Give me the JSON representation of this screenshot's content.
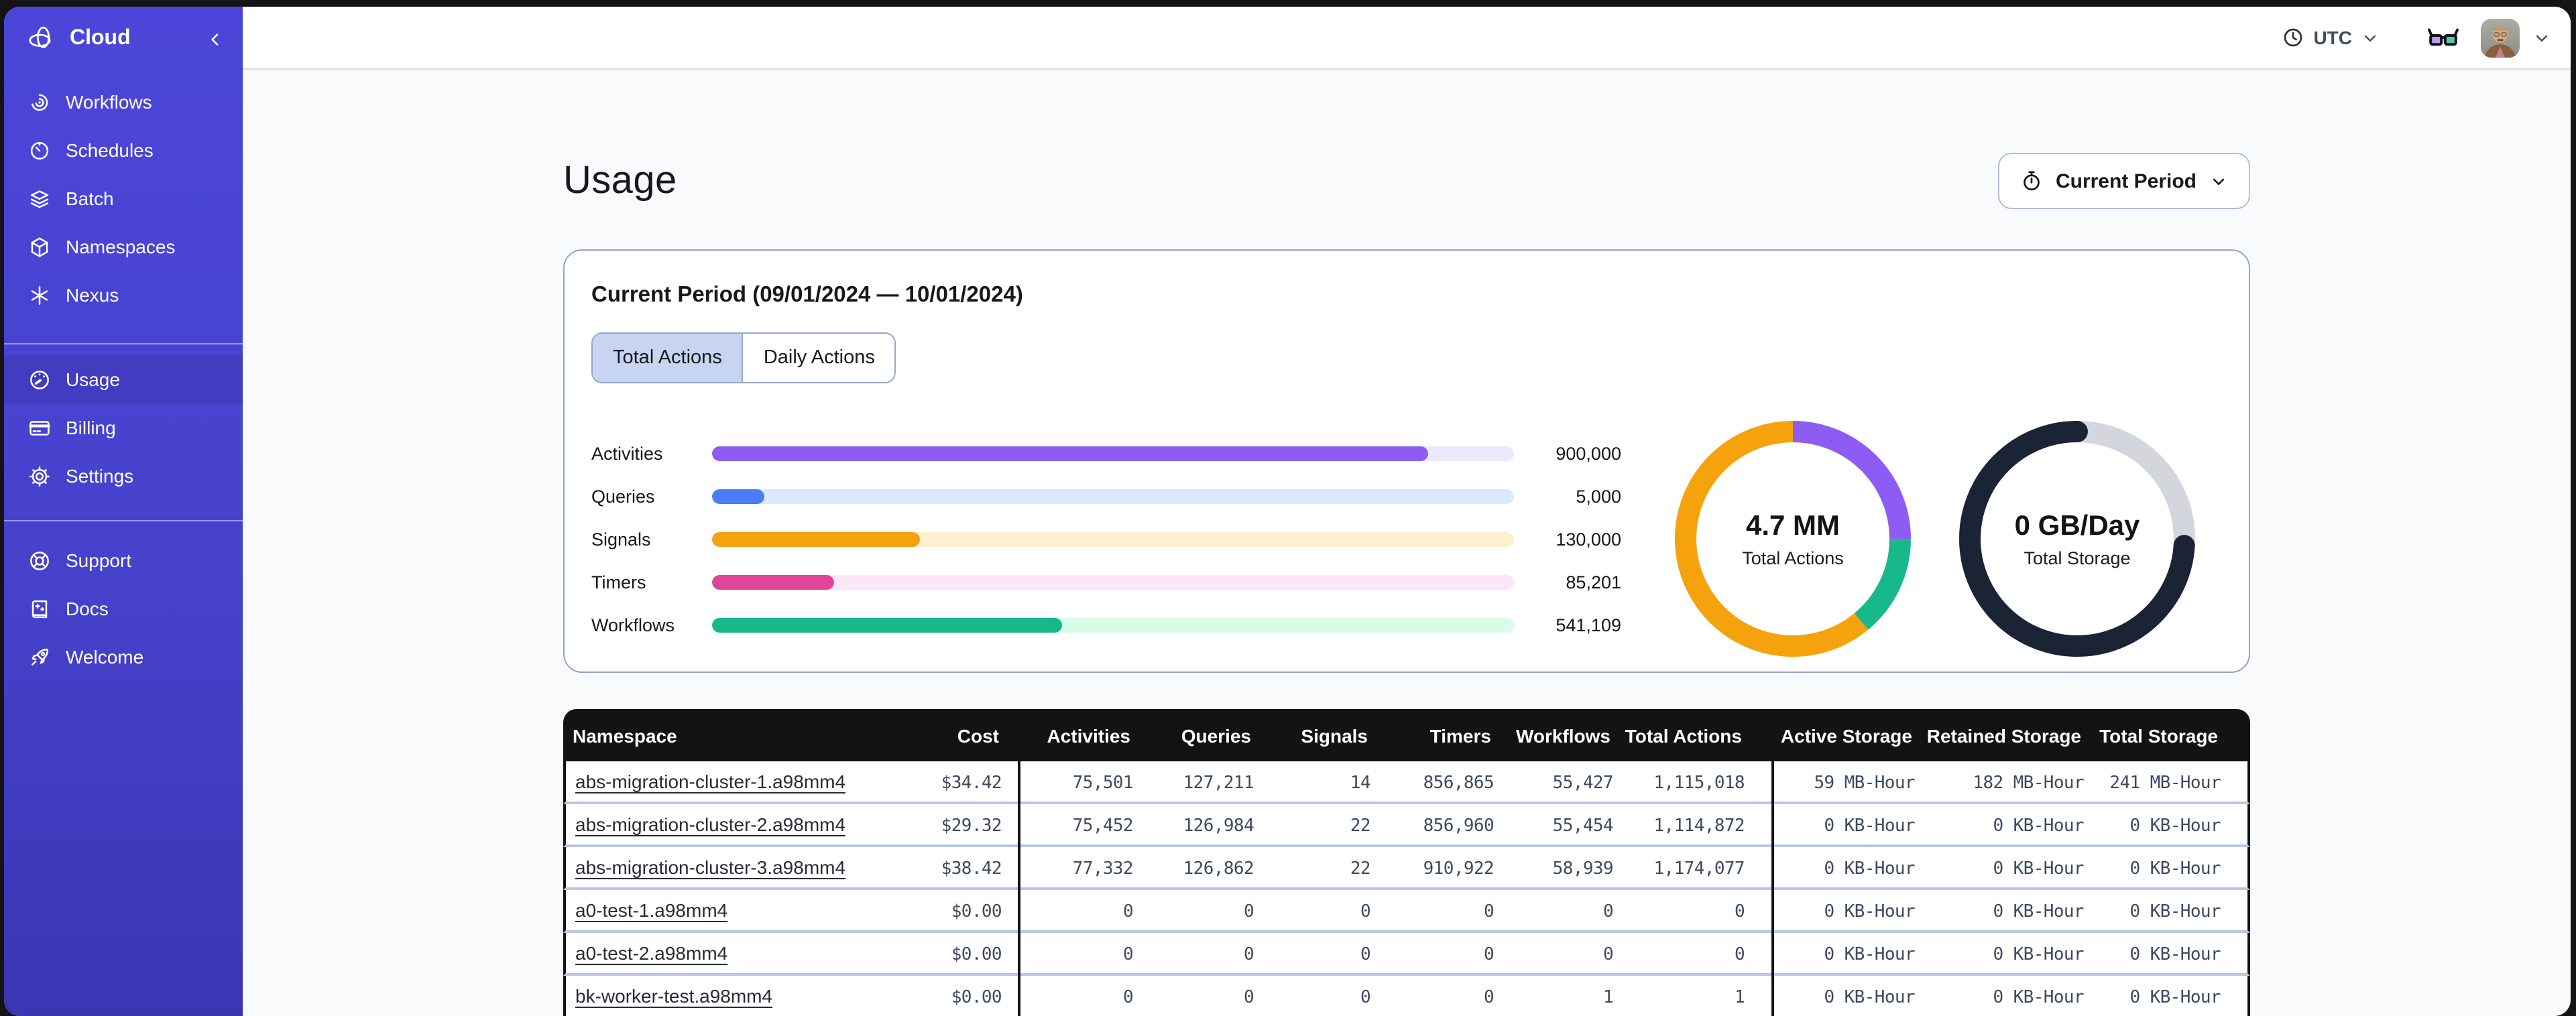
{
  "sidebar": {
    "brand": {
      "label": "Cloud",
      "icon": "temporal-logo"
    },
    "sections": [
      {
        "items": [
          {
            "id": "workflows",
            "label": "Workflows",
            "icon": "workflows"
          },
          {
            "id": "schedules",
            "label": "Schedules",
            "icon": "schedules"
          },
          {
            "id": "batch",
            "label": "Batch",
            "icon": "batch"
          },
          {
            "id": "namespaces",
            "label": "Namespaces",
            "icon": "namespaces"
          },
          {
            "id": "nexus",
            "label": "Nexus",
            "icon": "nexus"
          }
        ]
      },
      {
        "items": [
          {
            "id": "usage",
            "label": "Usage",
            "icon": "usage",
            "active": true
          },
          {
            "id": "billing",
            "label": "Billing",
            "icon": "billing"
          },
          {
            "id": "settings",
            "label": "Settings",
            "icon": "settings"
          }
        ]
      },
      {
        "items": [
          {
            "id": "support",
            "label": "Support",
            "icon": "support"
          },
          {
            "id": "docs",
            "label": "Docs",
            "icon": "docs"
          },
          {
            "id": "welcome",
            "label": "Welcome",
            "icon": "welcome"
          }
        ]
      }
    ]
  },
  "header": {
    "timezone_label": "UTC"
  },
  "page": {
    "title": "Usage",
    "period_button": {
      "label": "Current Period"
    },
    "card": {
      "title": "Current Period (09/01/2024 — 10/01/2024)",
      "tabs": [
        {
          "label": "Total Actions",
          "active": true
        },
        {
          "label": "Daily Actions",
          "active": false
        }
      ]
    }
  },
  "chart_data": [
    {
      "type": "bar",
      "orientation": "horizontal",
      "categories": [
        "Activities",
        "Queries",
        "Signals",
        "Timers",
        "Workflows"
      ],
      "values": [
        900000,
        5000,
        130000,
        85201,
        541109
      ],
      "display_values": [
        "900,000",
        "5,000",
        "130,000",
        "85,201",
        "541,109"
      ],
      "fill_pct": [
        89.3,
        6.5,
        25.9,
        15.2,
        43.7
      ],
      "colors": [
        "#8C5CF5",
        "#4B7EF5",
        "#F5A20C",
        "#E0459A",
        "#15B888"
      ],
      "track_colors": [
        "#EDE8FD",
        "#DCE9FB",
        "#FCF0CE",
        "#FBE7F8",
        "#D9FBEA"
      ]
    },
    {
      "type": "donut",
      "center_value": "4.7 MM",
      "center_label": "Total Actions",
      "segments": [
        {
          "name": "activities",
          "color": "#8C5CF5",
          "pct": 25
        },
        {
          "name": "workflows",
          "color": "#17B98A",
          "pct": 14
        },
        {
          "name": "signals",
          "color": "#F5A20C",
          "pct": 61
        }
      ],
      "linecap": "butt"
    },
    {
      "type": "donut",
      "center_value": "0 GB/Day",
      "center_label": "Total Storage",
      "track_color": "#D3D6DD",
      "segments": [
        {
          "name": "storage-used",
          "color": "#1B2434",
          "pct": 74,
          "start_pct": 26
        }
      ],
      "linecap": "round"
    }
  ],
  "table": {
    "columns": [
      "Namespace",
      "Cost",
      "Activities",
      "Queries",
      "Signals",
      "Timers",
      "Workflows",
      "Total Actions",
      "Active Storage",
      "Retained Storage",
      "Total Storage"
    ],
    "rows": [
      [
        "abs-migration-cluster-1.a98mm4",
        "$34.42",
        "75,501",
        "127,211",
        "14",
        "856,865",
        "55,427",
        "1,115,018",
        "59 MB-Hour",
        "182 MB-Hour",
        "241 MB-Hour"
      ],
      [
        "abs-migration-cluster-2.a98mm4",
        "$29.32",
        "75,452",
        "126,984",
        "22",
        "856,960",
        "55,454",
        "1,114,872",
        "0 KB-Hour",
        "0 KB-Hour",
        "0 KB-Hour"
      ],
      [
        "abs-migration-cluster-3.a98mm4",
        "$38.42",
        "77,332",
        "126,862",
        "22",
        "910,922",
        "58,939",
        "1,174,077",
        "0 KB-Hour",
        "0 KB-Hour",
        "0 KB-Hour"
      ],
      [
        "a0-test-1.a98mm4",
        "$0.00",
        "0",
        "0",
        "0",
        "0",
        "0",
        "0",
        "0 KB-Hour",
        "0 KB-Hour",
        "0 KB-Hour"
      ],
      [
        "a0-test-2.a98mm4",
        "$0.00",
        "0",
        "0",
        "0",
        "0",
        "0",
        "0",
        "0 KB-Hour",
        "0 KB-Hour",
        "0 KB-Hour"
      ],
      [
        "bk-worker-test.a98mm4",
        "$0.00",
        "0",
        "0",
        "0",
        "0",
        "1",
        "1",
        "0 KB-Hour",
        "0 KB-Hour",
        "0 KB-Hour"
      ]
    ]
  }
}
